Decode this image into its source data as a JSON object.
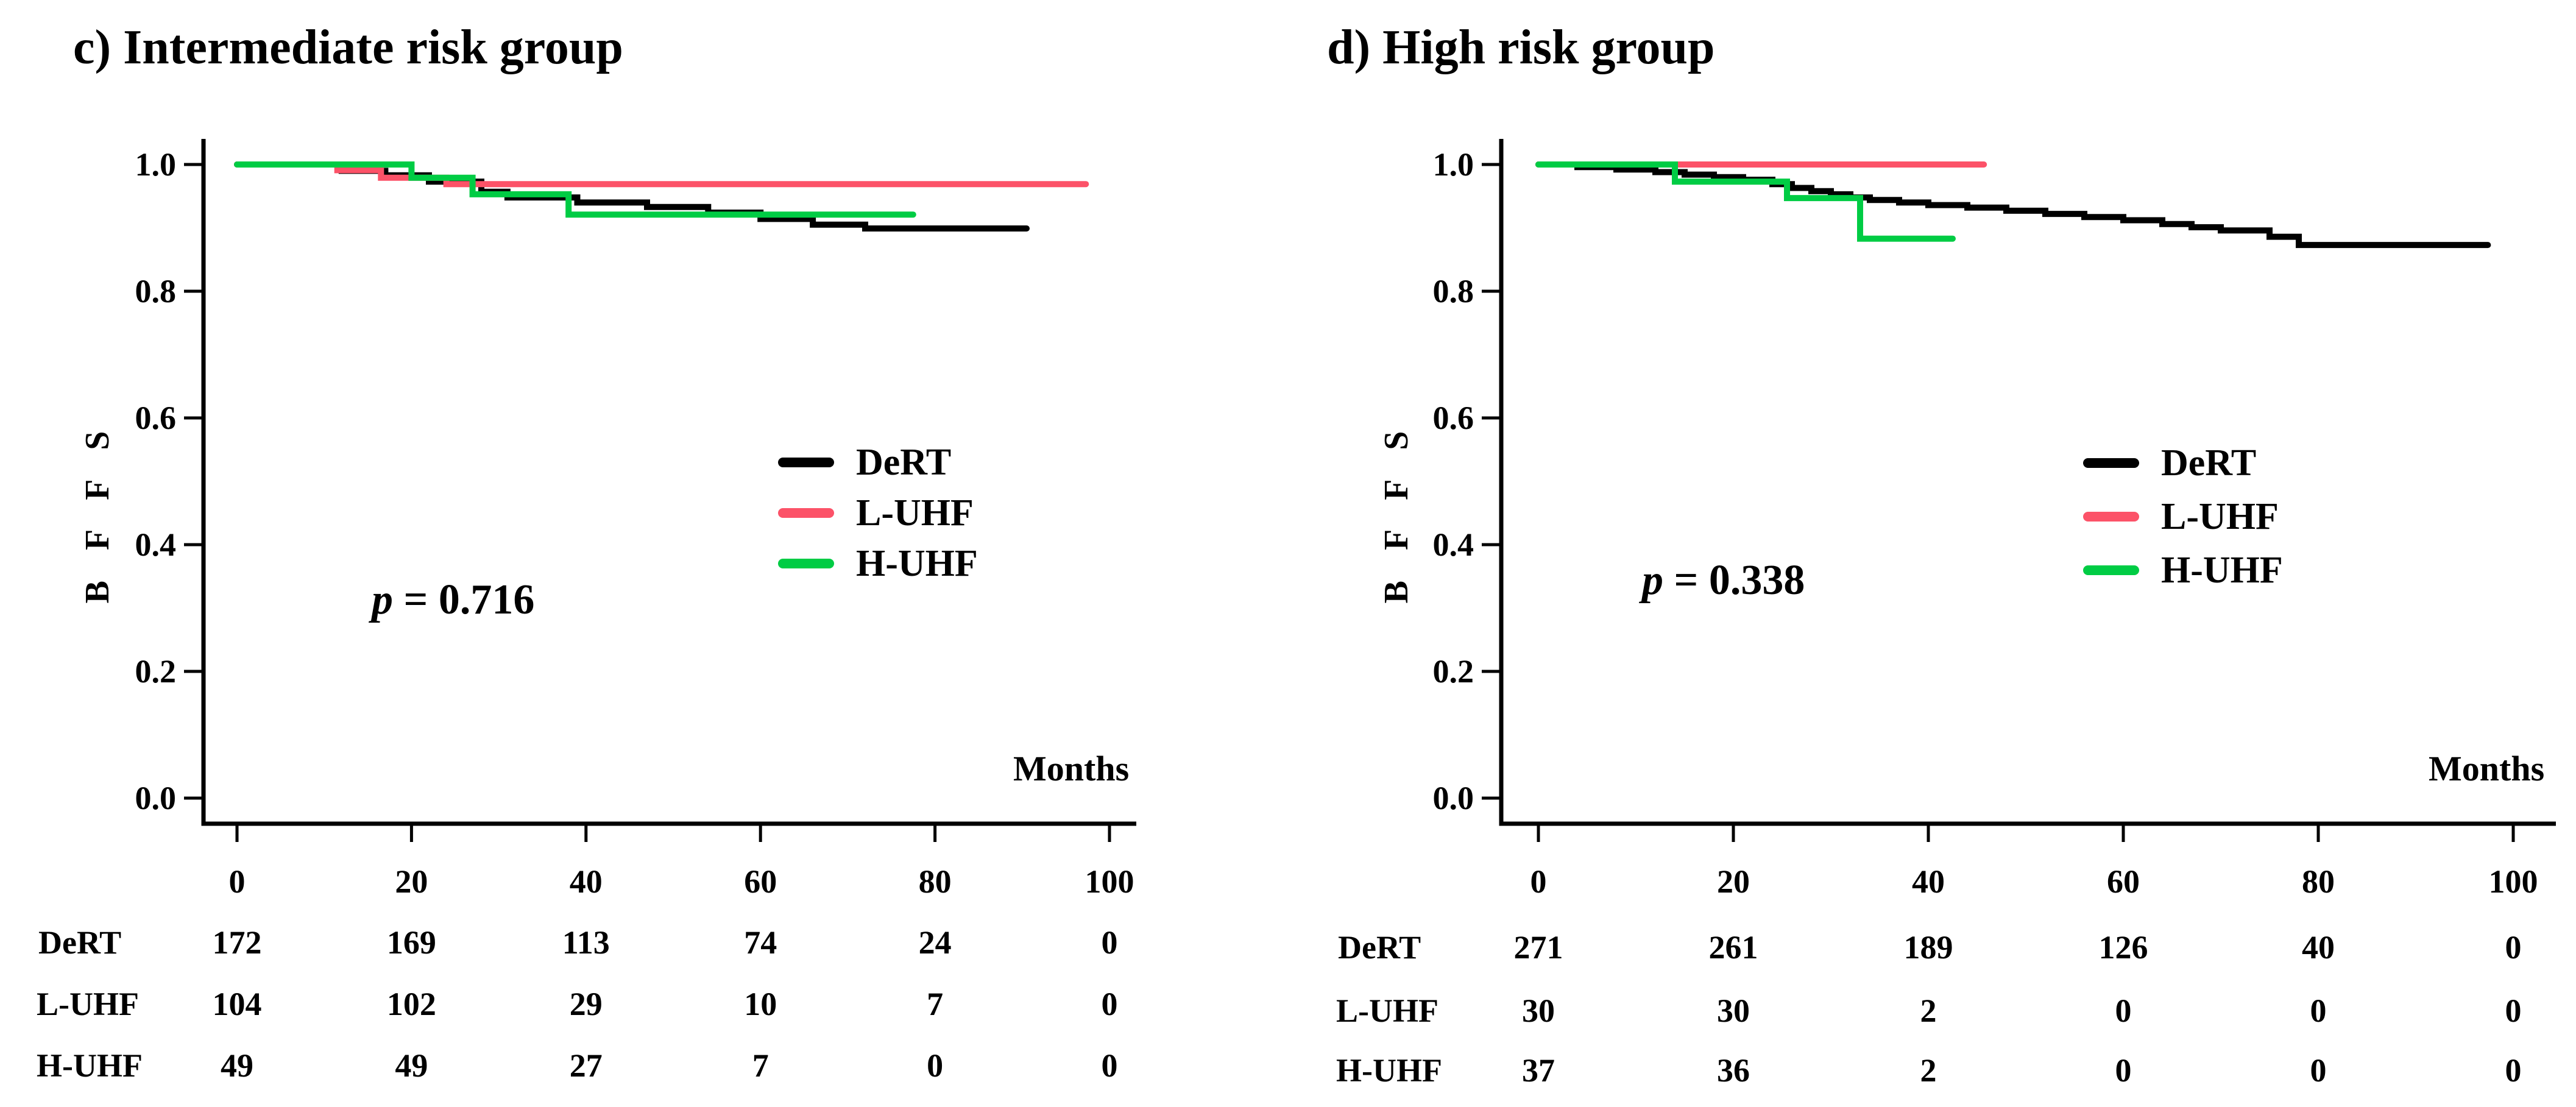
{
  "figure_background": "#ffffff",
  "chart_data": [
    {
      "type": "line",
      "subtype": "kaplan-meier-step",
      "title": "c) Intermediate risk group",
      "xlabel": "Months",
      "ylabel": "B F F S",
      "xlim": [
        0,
        100
      ],
      "ylim": [
        0.0,
        1.0
      ],
      "x_ticks": [
        "0",
        "20",
        "40",
        "60",
        "80",
        "100"
      ],
      "y_ticks": [
        "1.0",
        "0.8",
        "0.6",
        "0.4",
        "0.2",
        "0.0"
      ],
      "grid": "off",
      "legend_position": "center-right",
      "annotation": {
        "p_italic": "p",
        "p_rest": " = 0.716"
      },
      "series": [
        {
          "name": "DeRT",
          "color": "#000000",
          "steps": [
            [
              0,
              1.0
            ],
            [
              12,
              0.99
            ],
            [
              17,
              0.983
            ],
            [
              22,
              0.973
            ],
            [
              28,
              0.957
            ],
            [
              31,
              0.948
            ],
            [
              39,
              0.94
            ],
            [
              47,
              0.933
            ],
            [
              54,
              0.924
            ],
            [
              60,
              0.914
            ],
            [
              66,
              0.905
            ],
            [
              72,
              0.899
            ]
          ],
          "end_x": 90.5
        },
        {
          "name": "L-UHF",
          "color": "#FC5268",
          "steps": [
            [
              0,
              1.0
            ],
            [
              11.5,
              0.991
            ],
            [
              16.5,
              0.979
            ],
            [
              24,
              0.969
            ]
          ],
          "end_x": 97.3
        },
        {
          "name": "H-UHF",
          "color": "#00CC44",
          "steps": [
            [
              0,
              1.0
            ],
            [
              20,
              0.979
            ],
            [
              27,
              0.953
            ],
            [
              38,
              0.921
            ]
          ],
          "end_x": 77.5
        }
      ],
      "risk_table": {
        "time_points": [
          "0",
          "20",
          "40",
          "60",
          "80",
          "100"
        ],
        "rows": [
          {
            "label": "DeRT",
            "values": [
              172,
              169,
              113,
              74,
              24,
              0
            ]
          },
          {
            "label": "L-UHF",
            "values": [
              104,
              102,
              29,
              10,
              7,
              0
            ]
          },
          {
            "label": "H-UHF",
            "values": [
              49,
              49,
              27,
              7,
              0,
              0
            ]
          }
        ]
      }
    },
    {
      "type": "line",
      "subtype": "kaplan-meier-step",
      "title": "d) High risk group",
      "xlabel": "Months",
      "ylabel": "B F F S",
      "xlim": [
        0,
        100
      ],
      "ylim": [
        0.0,
        1.0
      ],
      "x_ticks": [
        "0",
        "20",
        "40",
        "60",
        "80",
        "100"
      ],
      "y_ticks": [
        "1.0",
        "0.8",
        "0.6",
        "0.4",
        "0.2",
        "0.0"
      ],
      "grid": "off",
      "legend_position": "center-right",
      "annotation": {
        "p_italic": "p",
        "p_rest": " = 0.338"
      },
      "series": [
        {
          "name": "DeRT",
          "color": "#000000",
          "steps": [
            [
              0,
              1.0
            ],
            [
              4,
              0.996
            ],
            [
              8,
              0.992
            ],
            [
              12,
              0.988
            ],
            [
              15,
              0.984
            ],
            [
              18,
              0.98
            ],
            [
              21,
              0.976
            ],
            [
              24,
              0.969
            ],
            [
              26,
              0.963
            ],
            [
              28,
              0.958
            ],
            [
              30,
              0.953
            ],
            [
              32,
              0.948
            ],
            [
              34,
              0.944
            ],
            [
              37,
              0.94
            ],
            [
              40,
              0.936
            ],
            [
              44,
              0.932
            ],
            [
              48,
              0.927
            ],
            [
              52,
              0.922
            ],
            [
              56,
              0.917
            ],
            [
              60,
              0.912
            ],
            [
              64,
              0.906
            ],
            [
              67,
              0.901
            ],
            [
              70,
              0.896
            ],
            [
              75,
              0.886
            ],
            [
              78,
              0.873
            ]
          ],
          "end_x": 97.4
        },
        {
          "name": "L-UHF",
          "color": "#FC5268",
          "steps": [
            [
              0,
              1.0
            ]
          ],
          "end_x": 45.7
        },
        {
          "name": "H-UHF",
          "color": "#00CC44",
          "steps": [
            [
              0,
              1.0
            ],
            [
              14,
              0.973
            ],
            [
              25.5,
              0.947
            ],
            [
              33,
              0.883
            ]
          ],
          "end_x": 42.5
        }
      ],
      "risk_table": {
        "time_points": [
          "0",
          "20",
          "40",
          "60",
          "80",
          "100"
        ],
        "rows": [
          {
            "label": "DeRT",
            "values": [
              271,
              261,
              189,
              126,
              40,
              0
            ]
          },
          {
            "label": "L-UHF",
            "values": [
              30,
              30,
              2,
              0,
              0,
              0
            ]
          },
          {
            "label": "H-UHF",
            "values": [
              37,
              36,
              2,
              0,
              0,
              0
            ]
          }
        ]
      }
    }
  ]
}
